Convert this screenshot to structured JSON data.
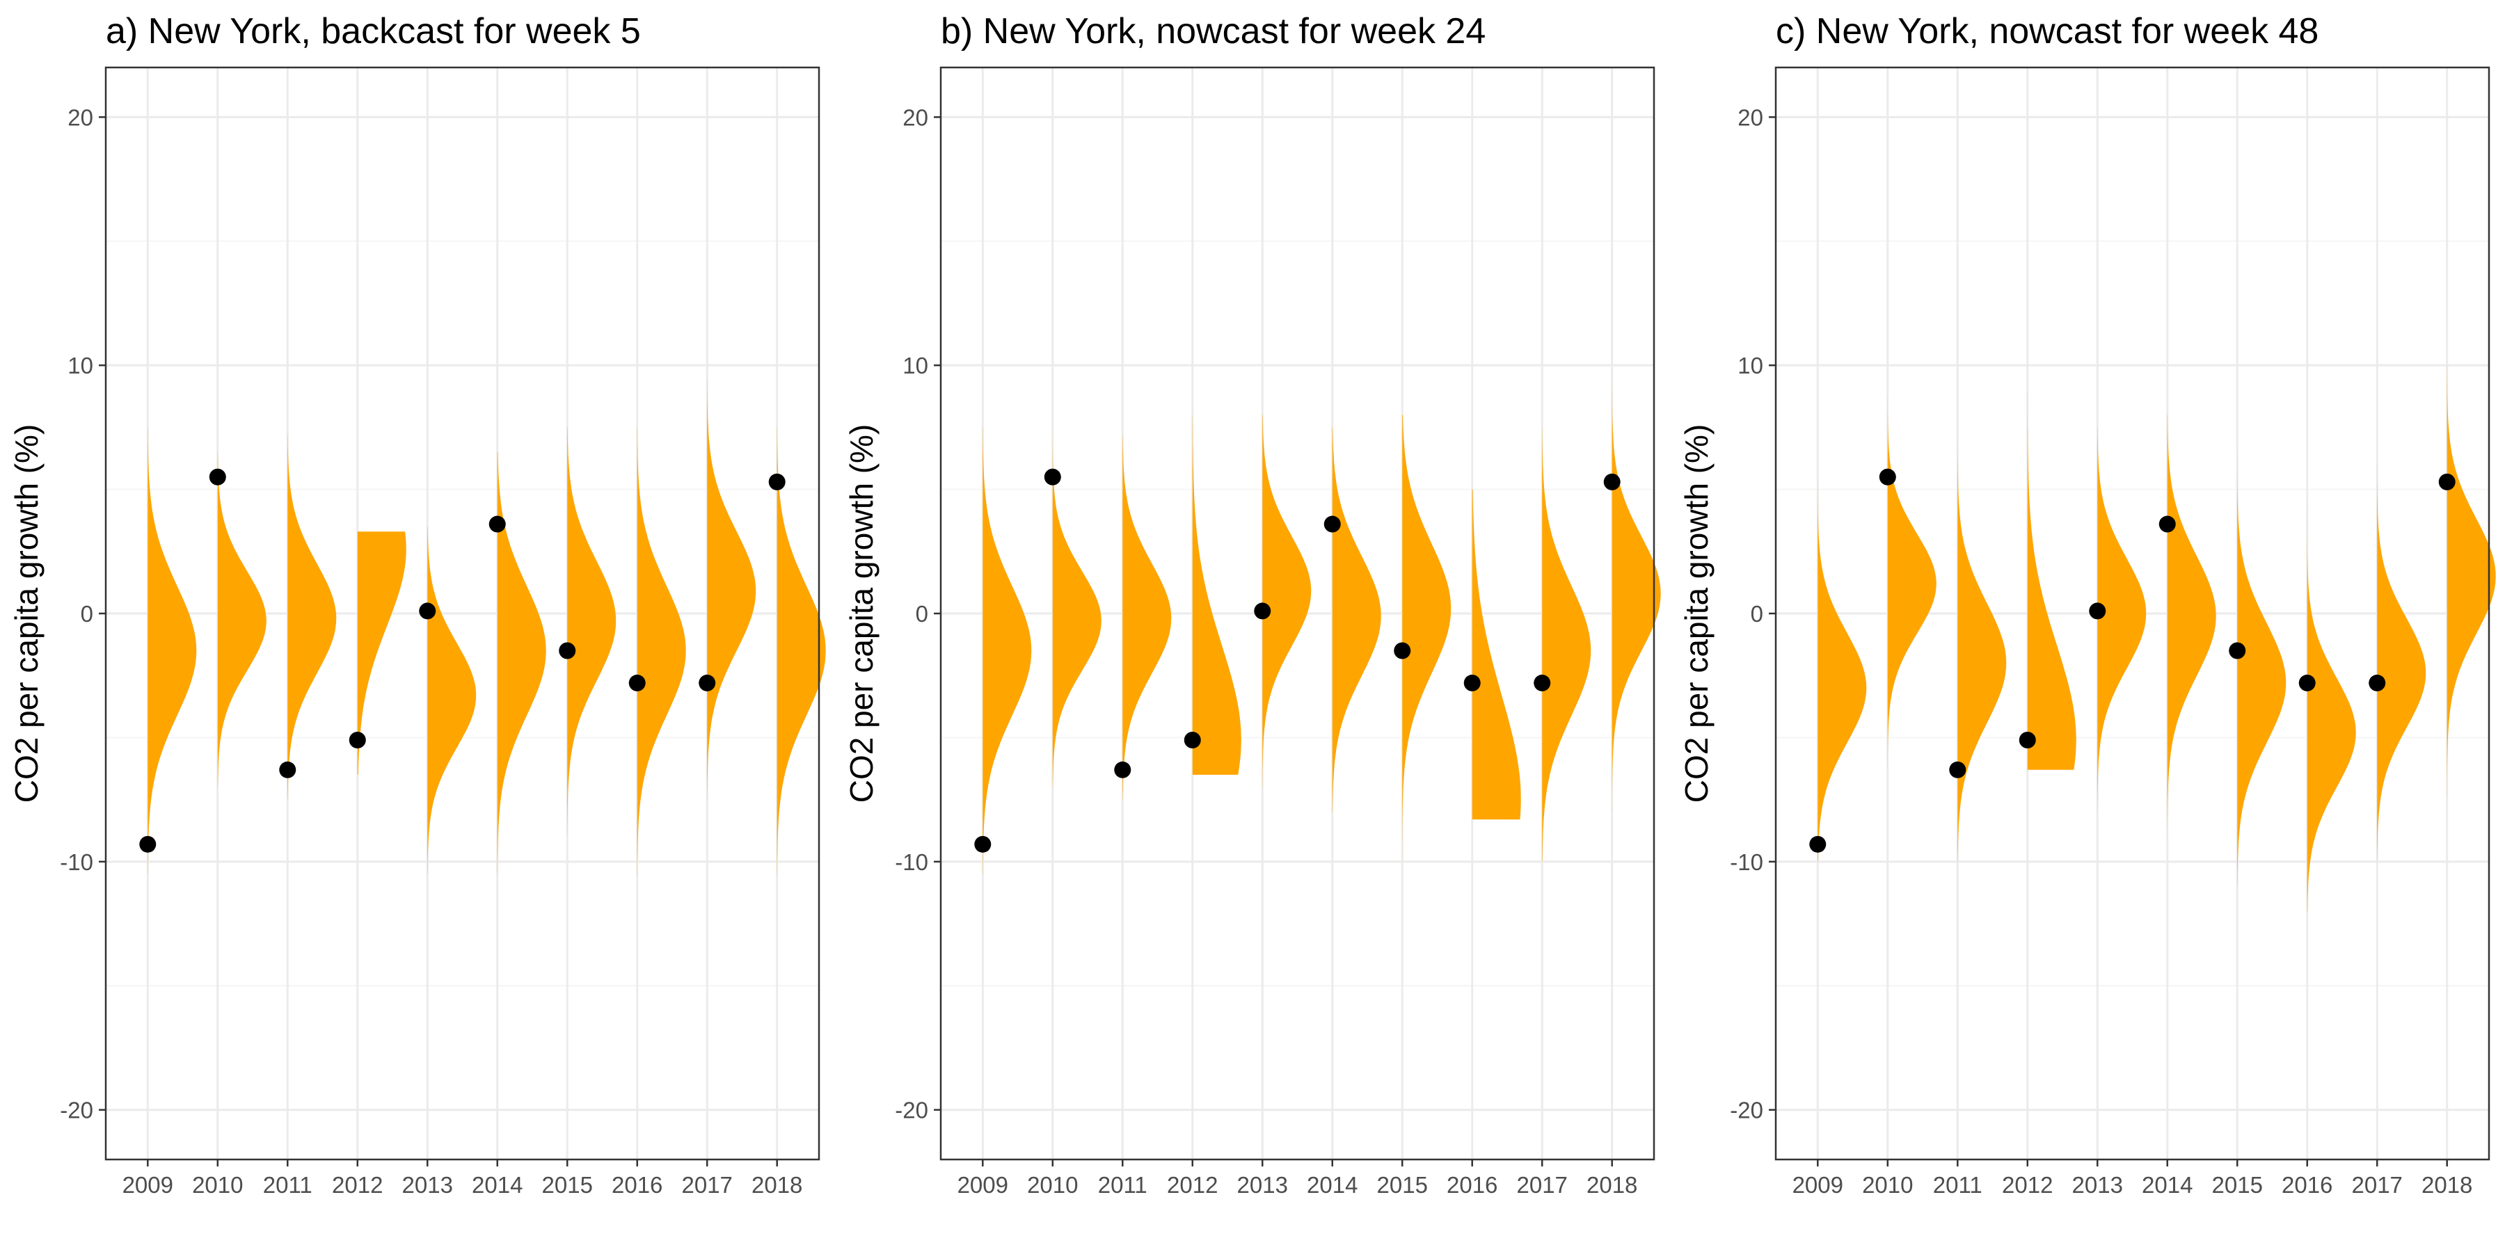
{
  "colors": {
    "density_fill": "#FFA500",
    "point": "#000000",
    "grid_major": "#EBEBEB",
    "grid_minor": "#F5F5F5",
    "panel_border": "#333333",
    "tick_text": "#4D4D4D"
  },
  "chart_data": [
    {
      "type": "density-strip",
      "title": "a) New York, backcast for week 5",
      "xlabel": "",
      "ylabel": "CO2 per capita growth (%)",
      "categories": [
        "2009",
        "2010",
        "2011",
        "2012",
        "2013",
        "2014",
        "2015",
        "2016",
        "2017",
        "2018"
      ],
      "yticks": [
        -20,
        -10,
        0,
        10,
        20
      ],
      "ylim": [
        -22,
        22
      ],
      "grid": true,
      "observed": [
        -9.3,
        5.5,
        -6.3,
        -5.1,
        0.1,
        3.6,
        -1.5,
        -2.8,
        -2.8,
        5.3
      ],
      "densities": [
        {
          "mean": -1.5,
          "sd": 2.6,
          "lower": -10.5,
          "upper": 7.5
        },
        {
          "mean": -0.3,
          "sd": 2.0,
          "lower": -7.0,
          "upper": 6.5
        },
        {
          "mean": -0.2,
          "sd": 2.2,
          "lower": -7.5,
          "upper": 7.2
        },
        {
          "mean": 2.6,
          "sd": 3.1,
          "lower": -6.5,
          "upper": 3.3
        },
        {
          "mean": -3.3,
          "sd": 2.1,
          "lower": -10.5,
          "upper": 3.5
        },
        {
          "mean": -1.5,
          "sd": 2.6,
          "lower": -10.5,
          "upper": 6.5
        },
        {
          "mean": -0.3,
          "sd": 2.4,
          "lower": -9.0,
          "upper": 7.5
        },
        {
          "mean": -1.5,
          "sd": 2.6,
          "lower": -10.5,
          "upper": 7.5
        },
        {
          "mean": 0.9,
          "sd": 2.4,
          "lower": -7.5,
          "upper": 9.5
        },
        {
          "mean": -1.5,
          "sd": 2.6,
          "lower": -10.5,
          "upper": 7.5
        }
      ]
    },
    {
      "type": "density-strip",
      "title": "b) New York, nowcast for week 24",
      "xlabel": "",
      "ylabel": "CO2 per capita growth (%)",
      "categories": [
        "2009",
        "2010",
        "2011",
        "2012",
        "2013",
        "2014",
        "2015",
        "2016",
        "2017",
        "2018"
      ],
      "yticks": [
        -20,
        -10,
        0,
        10,
        20
      ],
      "ylim": [
        -22,
        22
      ],
      "grid": true,
      "observed": [
        -9.3,
        5.5,
        -6.3,
        -5.1,
        0.1,
        3.6,
        -1.5,
        -2.8,
        -2.8,
        5.3
      ],
      "densities": [
        {
          "mean": -1.5,
          "sd": 2.6,
          "lower": -10.5,
          "upper": 7.5
        },
        {
          "mean": -0.3,
          "sd": 2.0,
          "lower": -7.0,
          "upper": 8.0
        },
        {
          "mean": -0.2,
          "sd": 2.2,
          "lower": -7.5,
          "upper": 7.2
        },
        {
          "mean": -5.1,
          "sd": 3.8,
          "lower": -6.5,
          "upper": 8.0
        },
        {
          "mean": 0.9,
          "sd": 2.2,
          "lower": -7.0,
          "upper": 8.0
        },
        {
          "mean": -0.1,
          "sd": 2.4,
          "lower": -8.0,
          "upper": 7.5
        },
        {
          "mean": 0.2,
          "sd": 2.6,
          "lower": -10.0,
          "upper": 8.0
        },
        {
          "mean": -7.5,
          "sd": 4.2,
          "lower": -8.3,
          "upper": 5.0
        },
        {
          "mean": -1.5,
          "sd": 2.6,
          "lower": -10.0,
          "upper": 7.5
        },
        {
          "mean": 0.8,
          "sd": 2.3,
          "lower": -8.0,
          "upper": 9.5
        }
      ]
    },
    {
      "type": "density-strip",
      "title": "c) New York, nowcast for week 48",
      "xlabel": "",
      "ylabel": "CO2 per capita growth (%)",
      "categories": [
        "2009",
        "2010",
        "2011",
        "2012",
        "2013",
        "2014",
        "2015",
        "2016",
        "2017",
        "2018"
      ],
      "yticks": [
        -20,
        -10,
        0,
        10,
        20
      ],
      "ylim": [
        -22,
        22
      ],
      "grid": true,
      "observed": [
        -9.3,
        5.5,
        -6.3,
        -5.1,
        0.1,
        3.6,
        -1.5,
        -2.8,
        -2.8,
        5.3
      ],
      "densities": [
        {
          "mean": -3.0,
          "sd": 2.2,
          "lower": -10.0,
          "upper": 6.0
        },
        {
          "mean": 1.2,
          "sd": 2.0,
          "lower": -6.5,
          "upper": 9.0
        },
        {
          "mean": -2.0,
          "sd": 2.4,
          "lower": -10.0,
          "upper": 7.0
        },
        {
          "mean": -5.1,
          "sd": 3.8,
          "lower": -6.3,
          "upper": 10.0
        },
        {
          "mean": 0.0,
          "sd": 2.2,
          "lower": -8.0,
          "upper": 7.5
        },
        {
          "mean": -0.1,
          "sd": 2.4,
          "lower": -9.0,
          "upper": 8.0
        },
        {
          "mean": -2.8,
          "sd": 2.4,
          "lower": -11.0,
          "upper": 6.5
        },
        {
          "mean": -4.8,
          "sd": 2.2,
          "lower": -12.0,
          "upper": 4.5
        },
        {
          "mean": -2.4,
          "sd": 2.2,
          "lower": -10.0,
          "upper": 6.0
        },
        {
          "mean": 1.5,
          "sd": 2.3,
          "lower": -7.5,
          "upper": 10.0
        }
      ]
    }
  ]
}
